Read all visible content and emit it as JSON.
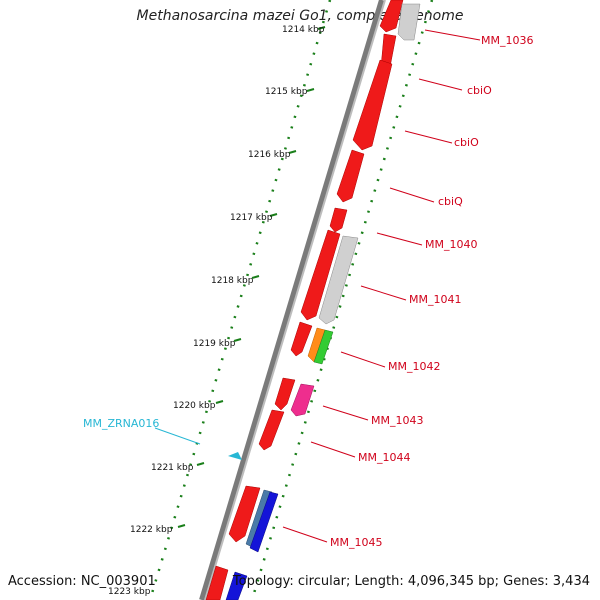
{
  "title": "Methanosarcina mazei Go1, complete genome",
  "footer": {
    "accession": "Accession: NC_003901",
    "summary": "Topology: circular; Length: 4,096,345 bp; Genes: 3,434"
  },
  "colors": {
    "backbone": "#7a7a7a",
    "tick": "#1a7f1a",
    "gene_label": "#d0021b",
    "rna": "#27b7d4"
  },
  "scale": {
    "unit": "kbp",
    "ticks": [
      {
        "label": "1214 kbp"
      },
      {
        "label": "1215 kbp"
      },
      {
        "label": "1216 kbp"
      },
      {
        "label": "1217 kbp"
      },
      {
        "label": "1218 kbp"
      },
      {
        "label": "1219 kbp"
      },
      {
        "label": "1220 kbp"
      },
      {
        "label": "1221 kbp"
      },
      {
        "label": "1222 kbp"
      },
      {
        "label": "1223 kbp"
      }
    ]
  },
  "gene_labels": [
    {
      "text": "MM_1036"
    },
    {
      "text": "cbiO"
    },
    {
      "text": "cbiO"
    },
    {
      "text": "cbiQ"
    },
    {
      "text": "MM_1040"
    },
    {
      "text": "MM_1041"
    },
    {
      "text": "MM_1042"
    },
    {
      "text": "MM_1043"
    },
    {
      "text": "MM_1044"
    },
    {
      "text": "MM_1045"
    }
  ],
  "rna_labels": [
    {
      "text": "MM_ZRNA016"
    }
  ]
}
